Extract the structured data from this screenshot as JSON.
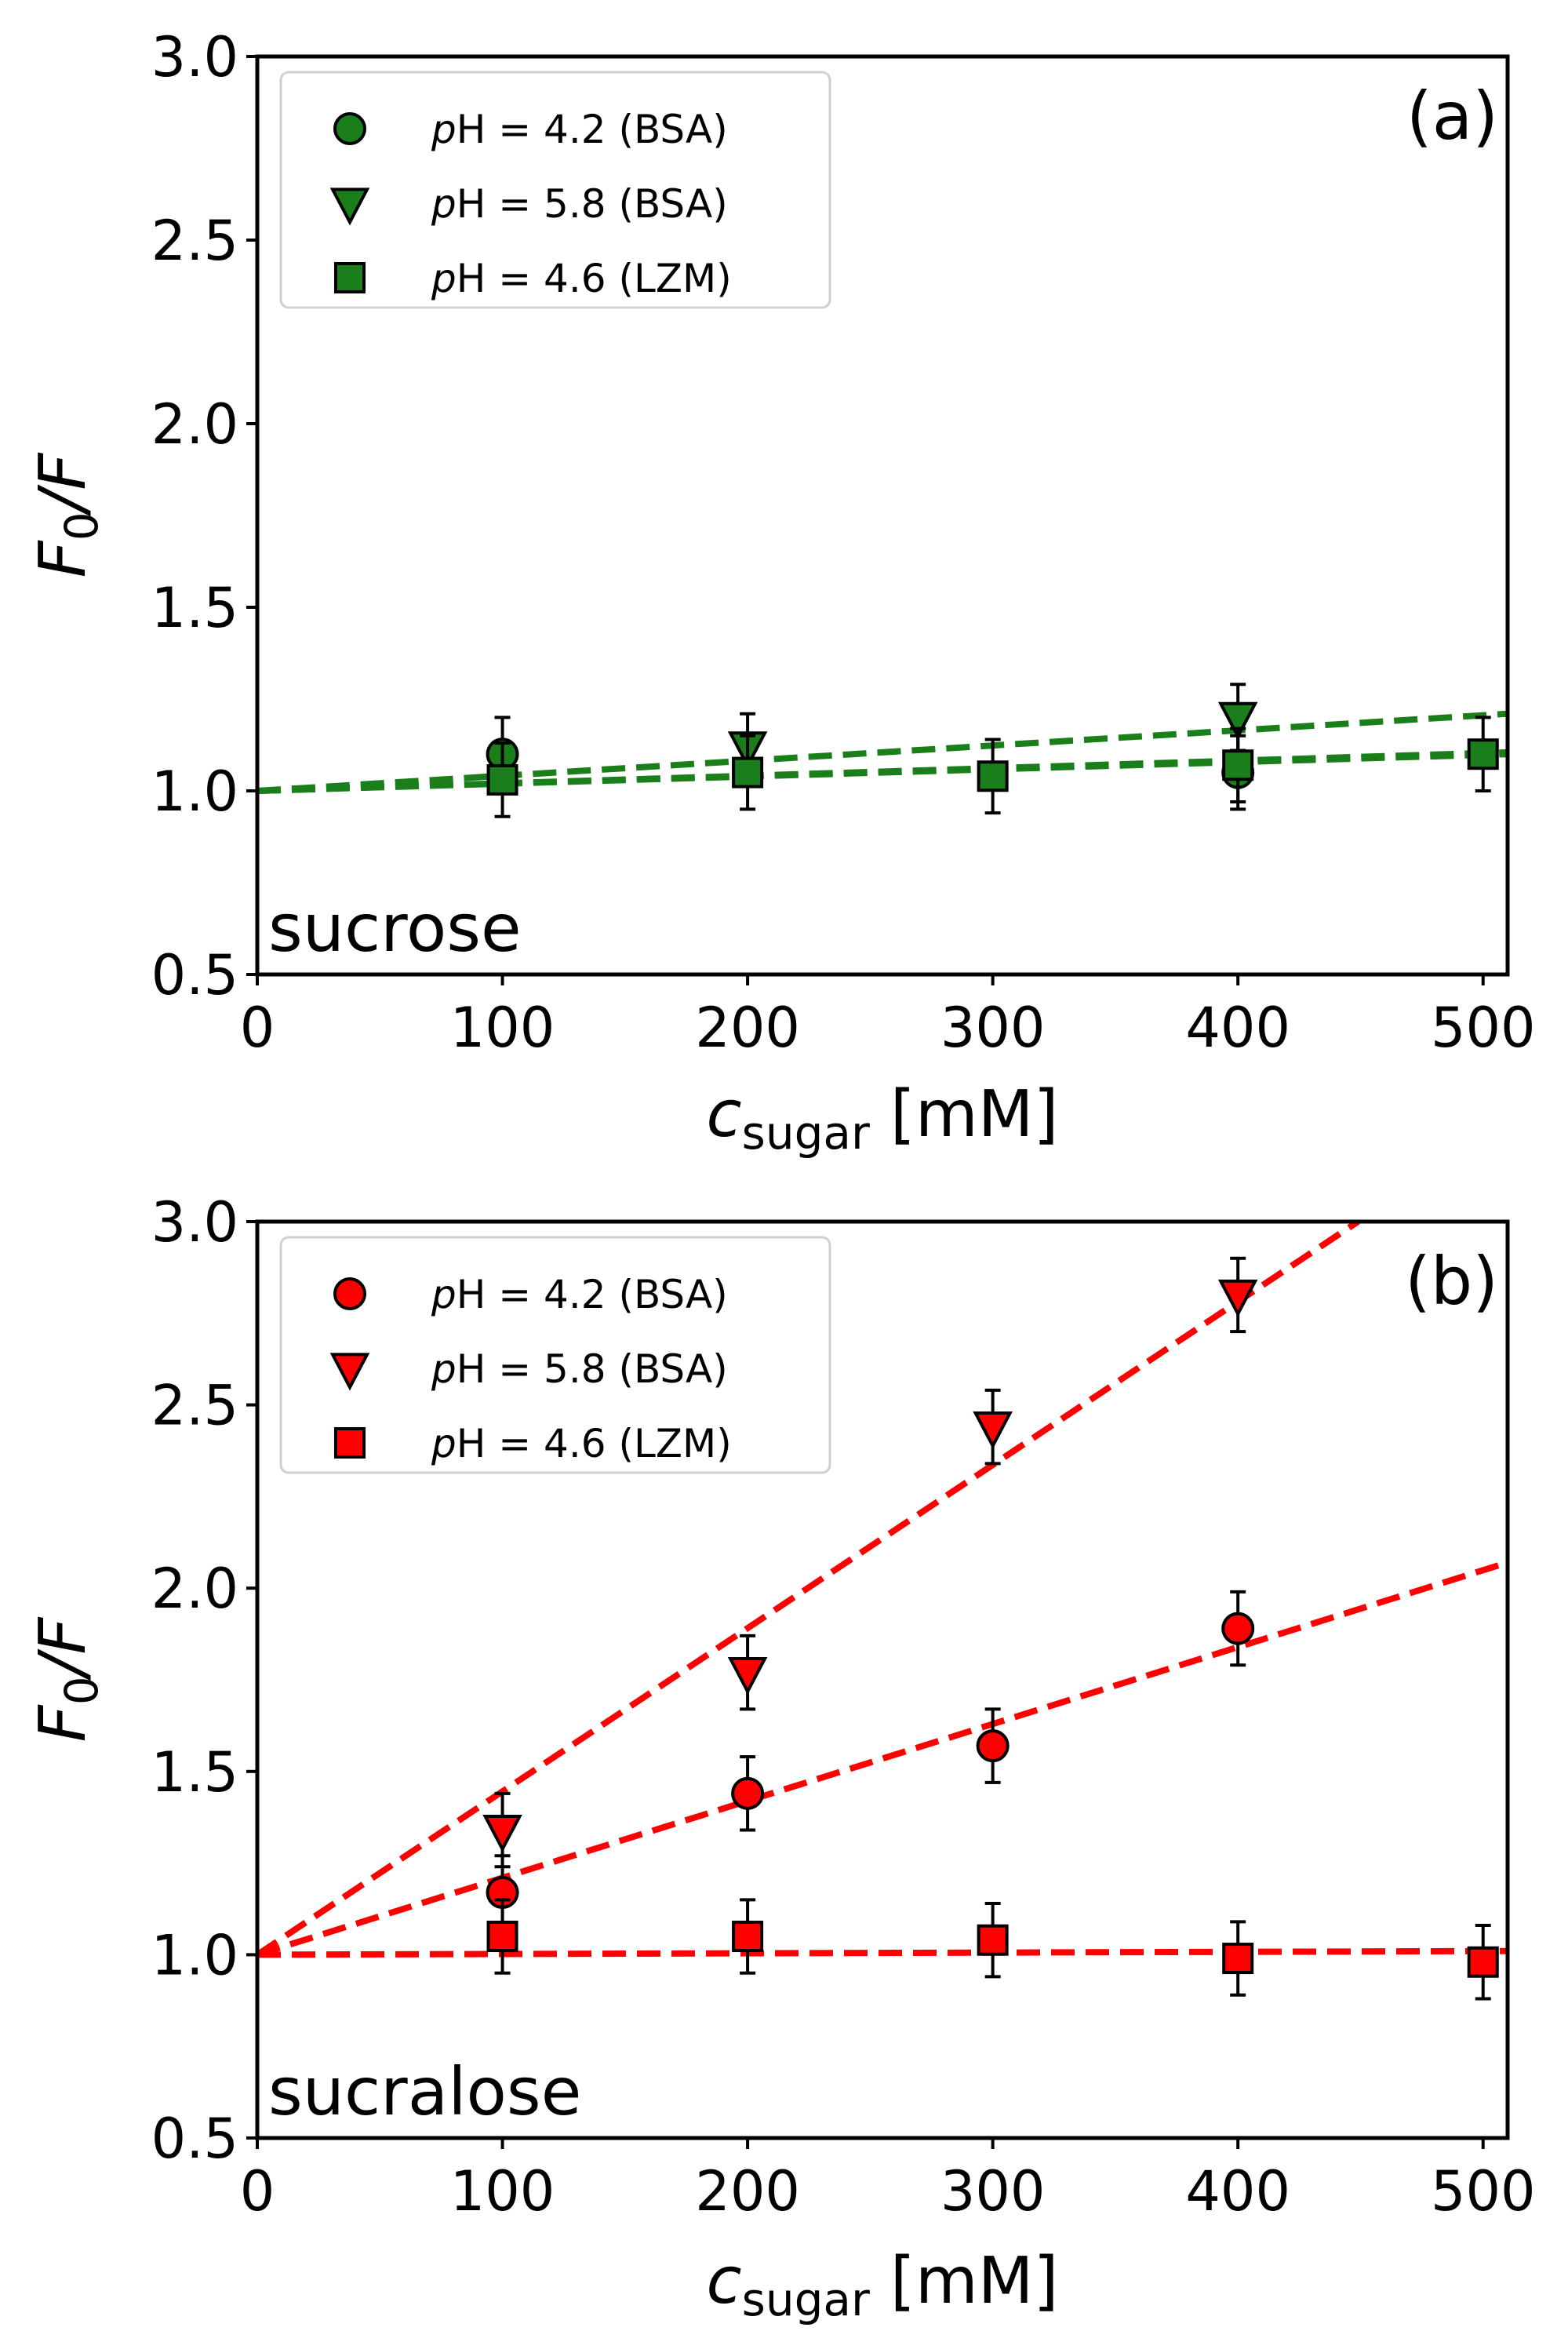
{
  "chart_data": [
    {
      "type": "scatter",
      "panel_label": "(a)",
      "annotation": "sucrose",
      "xlabel": {
        "main": "c",
        "sub": "sugar",
        "unit": " [mM]"
      },
      "ylabel": {
        "main": "F",
        "sub": "0",
        "tail": "/F"
      },
      "xlim": [
        0,
        510
      ],
      "ylim": [
        0.5,
        3.0
      ],
      "xticks": [
        0,
        100,
        200,
        300,
        400,
        500
      ],
      "yticks": [
        0.5,
        1.0,
        1.5,
        2.0,
        2.5,
        3.0
      ],
      "xtick_labels": [
        "0",
        "100",
        "200",
        "300",
        "400",
        "500"
      ],
      "ytick_labels": [
        "0.5",
        "1.0",
        "1.5",
        "2.0",
        "2.5",
        "3.0"
      ],
      "color": "#1a7f1a",
      "legend_position": "top-left",
      "series": [
        {
          "name": "pH = 4.2 (BSA)",
          "label_italic": "p",
          "label_rest": "H = 4.2 (BSA)",
          "marker": "circle",
          "x": [
            100,
            400
          ],
          "y": [
            1.1,
            1.05
          ],
          "err": [
            0.1,
            0.1
          ],
          "fit": {
            "x0": 0,
            "y0": 1.0,
            "x1": 510,
            "y1": 1.1
          }
        },
        {
          "name": "pH = 5.8 (BSA)",
          "label_italic": "p",
          "label_rest": "H = 5.8 (BSA)",
          "marker": "triangle-down",
          "x": [
            200,
            400
          ],
          "y": [
            1.12,
            1.2
          ],
          "err": [
            0.09,
            0.09
          ],
          "fit": {
            "x0": 0,
            "y0": 1.0,
            "x1": 510,
            "y1": 1.21
          }
        },
        {
          "name": "pH = 4.6 (LZM)",
          "label_italic": "p",
          "label_rest": "H = 4.6 (LZM)",
          "marker": "square",
          "x": [
            100,
            200,
            300,
            400,
            500
          ],
          "y": [
            1.03,
            1.05,
            1.04,
            1.07,
            1.1
          ],
          "err": [
            0.1,
            0.1,
            0.1,
            0.1,
            0.1
          ],
          "fit": {
            "x0": 0,
            "y0": 1.0,
            "x1": 510,
            "y1": 1.105
          }
        }
      ]
    },
    {
      "type": "scatter",
      "panel_label": "(b)",
      "annotation": "sucralose",
      "xlabel": {
        "main": "c",
        "sub": "sugar",
        "unit": " [mM]"
      },
      "ylabel": {
        "main": "F",
        "sub": "0",
        "tail": "/F"
      },
      "xlim": [
        0,
        510
      ],
      "ylim": [
        0.5,
        3.0
      ],
      "xticks": [
        0,
        100,
        200,
        300,
        400,
        500
      ],
      "yticks": [
        0.5,
        1.0,
        1.5,
        2.0,
        2.5,
        3.0
      ],
      "xtick_labels": [
        "0",
        "100",
        "200",
        "300",
        "400",
        "500"
      ],
      "ytick_labels": [
        "0.5",
        "1.0",
        "1.5",
        "2.0",
        "2.5",
        "3.0"
      ],
      "color": "#ff0000",
      "legend_position": "top-left",
      "series": [
        {
          "name": "pH = 4.2 (BSA)",
          "label_italic": "p",
          "label_rest": "H = 4.2 (BSA)",
          "marker": "circle",
          "x": [
            100,
            200,
            300,
            400
          ],
          "y": [
            1.17,
            1.44,
            1.57,
            1.89
          ],
          "err": [
            0.1,
            0.1,
            0.1,
            0.1
          ],
          "fit": {
            "x0": 0,
            "y0": 1.0,
            "x1": 510,
            "y1": 2.07
          }
        },
        {
          "name": "pH = 5.8 (BSA)",
          "label_italic": "p",
          "label_rest": "H = 5.8 (BSA)",
          "marker": "triangle-down",
          "x": [
            100,
            200,
            300,
            400
          ],
          "y": [
            1.34,
            1.77,
            2.44,
            2.8
          ],
          "err": [
            0.1,
            0.1,
            0.1,
            0.1
          ],
          "fit": {
            "x0": 0,
            "y0": 1.0,
            "x1": 449,
            "y1": 3.0
          }
        },
        {
          "name": "pH = 4.6 (LZM)",
          "label_italic": "p",
          "label_rest": "H = 4.6 (LZM)",
          "marker": "square",
          "x": [
            100,
            200,
            300,
            400,
            500
          ],
          "y": [
            1.05,
            1.05,
            1.04,
            0.99,
            0.98
          ],
          "err": [
            0.1,
            0.1,
            0.1,
            0.1,
            0.1
          ],
          "fit": {
            "x0": 0,
            "y0": 1.0,
            "x1": 510,
            "y1": 1.01
          }
        }
      ]
    }
  ]
}
